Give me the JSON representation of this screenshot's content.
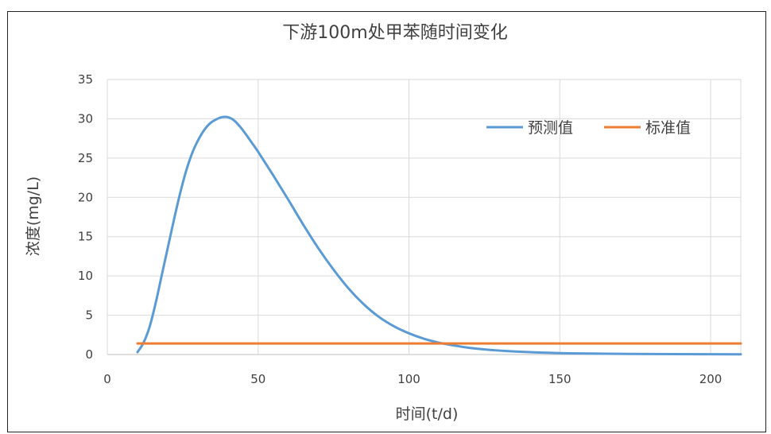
{
  "chart_data": {
    "type": "line",
    "title": "下游100m处甲苯随时间变化",
    "xlabel": "时间(t/d)",
    "ylabel": "浓度(mg/L)",
    "xlim": [
      0,
      210
    ],
    "ylim": [
      0,
      35
    ],
    "x_ticks": [
      0,
      50,
      100,
      150,
      200
    ],
    "y_ticks": [
      0,
      5,
      10,
      15,
      20,
      25,
      30,
      35
    ],
    "grid": true,
    "legend_position": "top-right",
    "series": [
      {
        "name": "预测值",
        "color": "#5b9bd5",
        "points": [
          [
            10,
            0.3
          ],
          [
            12,
            1.5
          ],
          [
            14,
            3.5
          ],
          [
            16,
            6.5
          ],
          [
            18,
            10.0
          ],
          [
            20,
            13.5
          ],
          [
            22,
            17.0
          ],
          [
            24,
            20.3
          ],
          [
            26,
            23.2
          ],
          [
            28,
            25.5
          ],
          [
            30,
            27.2
          ],
          [
            32,
            28.5
          ],
          [
            34,
            29.4
          ],
          [
            36,
            29.9
          ],
          [
            38,
            30.2
          ],
          [
            40,
            30.2
          ],
          [
            42,
            29.8
          ],
          [
            44,
            29.0
          ],
          [
            46,
            28.0
          ],
          [
            48,
            26.9
          ],
          [
            50,
            25.8
          ],
          [
            55,
            22.8
          ],
          [
            60,
            19.7
          ],
          [
            65,
            16.5
          ],
          [
            70,
            13.5
          ],
          [
            75,
            10.8
          ],
          [
            80,
            8.4
          ],
          [
            85,
            6.4
          ],
          [
            90,
            4.8
          ],
          [
            95,
            3.6
          ],
          [
            100,
            2.7
          ],
          [
            105,
            2.0
          ],
          [
            110,
            1.5
          ],
          [
            115,
            1.15
          ],
          [
            120,
            0.85
          ],
          [
            130,
            0.5
          ],
          [
            140,
            0.3
          ],
          [
            150,
            0.18
          ],
          [
            160,
            0.12
          ],
          [
            180,
            0.06
          ],
          [
            200,
            0.04
          ],
          [
            210,
            0.03
          ]
        ]
      },
      {
        "name": "标准值",
        "color": "#ed7d31",
        "points": [
          [
            10,
            1.4
          ],
          [
            210,
            1.4
          ]
        ]
      }
    ]
  }
}
